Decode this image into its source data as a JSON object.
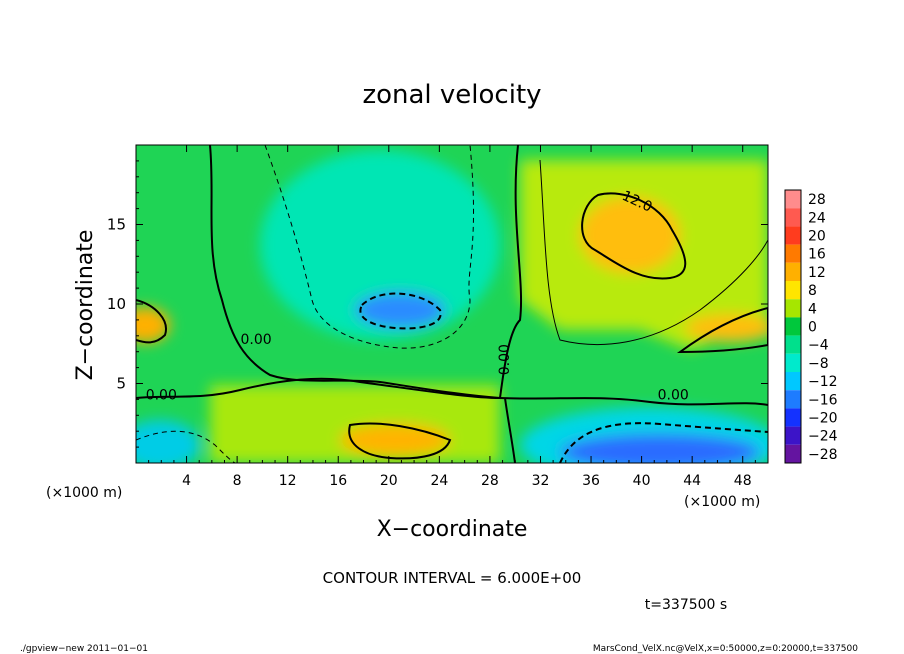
{
  "chart_data": {
    "type": "heatmap",
    "title": "zonal velocity",
    "xlabel": "X−coordinate",
    "ylabel": "Z−coordinate",
    "x_unit_left": "(×1000 m)",
    "x_unit_right": "(×1000 m)",
    "xlim": [
      0,
      50
    ],
    "ylim": [
      0,
      20
    ],
    "xticks": [
      4,
      8,
      12,
      16,
      20,
      24,
      28,
      32,
      36,
      40,
      44,
      48
    ],
    "yticks": [
      5,
      10,
      15
    ],
    "colorbar": {
      "levels": [
        28,
        24,
        20,
        16,
        12,
        8,
        4,
        0,
        -4,
        -8,
        -12,
        -16,
        -20,
        -24,
        -28
      ],
      "labels": [
        "28",
        "24",
        "20",
        "16",
        "12",
        "8",
        "4",
        "0",
        "−4",
        "−8",
        "−12",
        "−16",
        "−20",
        "−24",
        "−28"
      ],
      "colors": [
        "#ff8c8c",
        "#ff5a50",
        "#ff3c1e",
        "#ff7a00",
        "#ffb000",
        "#ffe500",
        "#a6e600",
        "#00c83c",
        "#00e08c",
        "#00eacc",
        "#00c8ff",
        "#1e7cff",
        "#1432ff",
        "#3c14c8",
        "#6414a0"
      ]
    },
    "contour_labels": [
      {
        "text": "12.0",
        "x": 39.5,
        "z": 16.2
      },
      {
        "text": "0.00",
        "x": 9.5,
        "z": 7.5
      },
      {
        "text": "0.00",
        "x": 2.0,
        "z": 4.0
      },
      {
        "text": "0.00",
        "x": 29.5,
        "z": 6.5
      },
      {
        "text": "0.00",
        "x": 42.5,
        "z": 4.0
      }
    ],
    "regions": [
      {
        "x": 3,
        "z": 10,
        "value": -1
      },
      {
        "x": 22,
        "z": 14,
        "value": -8
      },
      {
        "x": 21,
        "z": 9.5,
        "value": -15
      },
      {
        "x": 12,
        "z": 3,
        "value": 3
      },
      {
        "x": 22,
        "z": 1.5,
        "value": 12
      },
      {
        "x": 39,
        "z": 14,
        "value": 12
      },
      {
        "x": 47,
        "z": 8,
        "value": 13
      },
      {
        "x": 0.5,
        "z": 8.5,
        "value": 13
      },
      {
        "x": 42,
        "z": 1,
        "value": -18
      },
      {
        "x": 2,
        "z": 1,
        "value": -10
      }
    ]
  },
  "contour_interval": "CONTOUR INTERVAL = 6.000E+00",
  "time_label": "t=337500 s",
  "footer_left": "./gpview−new  2011−01−01",
  "footer_right": "MarsCond_VelX.nc@VelX,x=0:50000,z=0:20000,t=337500"
}
